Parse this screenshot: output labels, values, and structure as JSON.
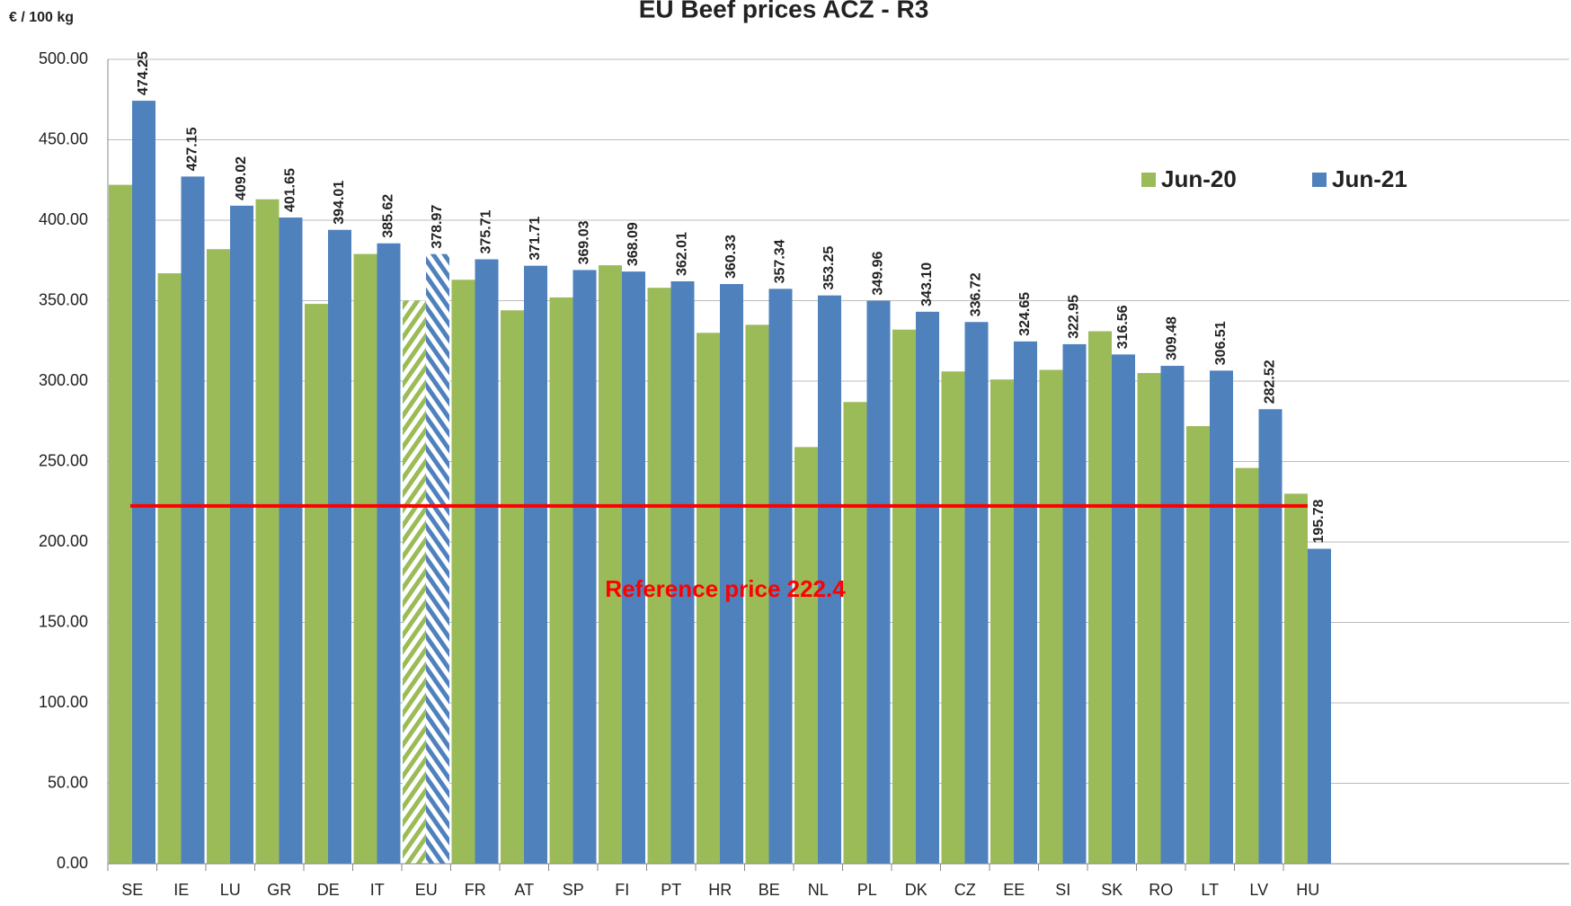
{
  "chart_data": {
    "type": "bar",
    "title": "EU Beef prices ACZ - R3",
    "y_axis_label": "€ / 100 kg",
    "categories": [
      "SE",
      "IE",
      "LU",
      "GR",
      "DE",
      "IT",
      "EU",
      "FR",
      "AT",
      "SP",
      "FI",
      "PT",
      "HR",
      "BE",
      "NL",
      "PL",
      "DK",
      "CZ",
      "EE",
      "SI",
      "SK",
      "RO",
      "LT",
      "LV",
      "HU"
    ],
    "series": [
      {
        "name": "Jun-20",
        "color": "#9bbb59",
        "values": [
          422,
          367,
          382,
          413,
          348,
          379,
          350,
          363,
          344,
          352,
          372,
          358,
          330,
          335,
          259,
          287,
          332,
          306,
          301,
          307,
          331,
          305,
          272,
          246,
          230
        ]
      },
      {
        "name": "Jun-21",
        "color": "#4f81bd",
        "values": [
          474.25,
          427.15,
          409.02,
          401.65,
          394.01,
          385.62,
          378.97,
          375.71,
          371.71,
          369.03,
          368.09,
          362.01,
          360.33,
          357.34,
          353.25,
          349.96,
          343.1,
          336.72,
          324.65,
          322.95,
          316.56,
          309.48,
          306.51,
          282.52,
          195.78
        ],
        "value_labels": [
          "474.25",
          "427.15",
          "409.02",
          "401.65",
          "394.01",
          "385.62",
          "378.97",
          "375.71",
          "371.71",
          "369.03",
          "368.09",
          "362.01",
          "360.33",
          "357.34",
          "353.25",
          "349.96",
          "343.10",
          "336.72",
          "324.65",
          "322.95",
          "316.56",
          "309.48",
          "306.51",
          "282.52",
          "195.78"
        ]
      }
    ],
    "highlight_category": "EU",
    "reference_line": {
      "value": 222.4,
      "label": "Reference price 222.4",
      "color": "#ff0000"
    },
    "ylim": [
      0,
      500
    ],
    "yticks": [
      {
        "value": 0,
        "label": "0.00"
      },
      {
        "value": 50,
        "label": "50.00"
      },
      {
        "value": 100,
        "label": "100.00"
      },
      {
        "value": 150,
        "label": "150.00"
      },
      {
        "value": 200,
        "label": "200.00"
      },
      {
        "value": 250,
        "label": "250.00"
      },
      {
        "value": 300,
        "label": "300.00"
      },
      {
        "value": 350,
        "label": "350.00"
      },
      {
        "value": 400,
        "label": "400.00"
      },
      {
        "value": 450,
        "label": "450.00"
      },
      {
        "value": 500,
        "label": "500.00"
      }
    ],
    "grid": true
  }
}
